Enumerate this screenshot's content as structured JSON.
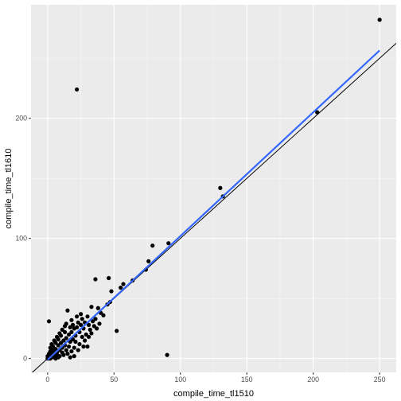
{
  "chart_data": {
    "type": "scatter",
    "xlabel": "compile_time_tl1510",
    "ylabel": "compile_time_tl1610",
    "xlim": [
      -12.5,
      262.5
    ],
    "ylim": [
      -11.5,
      294.5
    ],
    "x_ticks": [
      0,
      50,
      100,
      150,
      200,
      250
    ],
    "y_ticks": [
      0,
      100,
      200
    ],
    "x_tick_labels": [
      "0",
      "50",
      "100",
      "150",
      "200",
      "250"
    ],
    "y_tick_labels": [
      "0",
      "100",
      "200"
    ],
    "grid": true,
    "reference_line": {
      "slope": 1,
      "intercept": 0,
      "color": "#000000"
    },
    "fit_line": {
      "x": [
        0,
        250
      ],
      "y": [
        -1,
        256.5
      ],
      "color": "#3366ff"
    },
    "points": [
      {
        "x": 250,
        "y": 282
      },
      {
        "x": 22,
        "y": 224
      },
      {
        "x": 203,
        "y": 205
      },
      {
        "x": 130,
        "y": 142
      },
      {
        "x": 132,
        "y": 135
      },
      {
        "x": 91,
        "y": 96
      },
      {
        "x": 79,
        "y": 94
      },
      {
        "x": 76,
        "y": 81
      },
      {
        "x": 74,
        "y": 74
      },
      {
        "x": 64,
        "y": 65
      },
      {
        "x": 57,
        "y": 62
      },
      {
        "x": 55,
        "y": 59
      },
      {
        "x": 46,
        "y": 67
      },
      {
        "x": 36,
        "y": 66
      },
      {
        "x": 48,
        "y": 56
      },
      {
        "x": 47,
        "y": 47
      },
      {
        "x": 45,
        "y": 45
      },
      {
        "x": 52,
        "y": 23
      },
      {
        "x": 90,
        "y": 3
      },
      {
        "x": 1,
        "y": 31
      },
      {
        "x": 15,
        "y": 40
      },
      {
        "x": 33,
        "y": 43
      },
      {
        "x": 38,
        "y": 42
      },
      {
        "x": 30,
        "y": 35
      },
      {
        "x": 28,
        "y": 30
      },
      {
        "x": 25,
        "y": 28
      },
      {
        "x": 22,
        "y": 26
      },
      {
        "x": 20,
        "y": 25
      },
      {
        "x": 18,
        "y": 22
      },
      {
        "x": 16,
        "y": 20
      },
      {
        "x": 14,
        "y": 17
      },
      {
        "x": 12,
        "y": 15
      },
      {
        "x": 10,
        "y": 13
      },
      {
        "x": 8,
        "y": 11
      },
      {
        "x": 6,
        "y": 8
      },
      {
        "x": 4,
        "y": 6
      },
      {
        "x": 3,
        "y": 4
      },
      {
        "x": 2,
        "y": 2
      },
      {
        "x": 1,
        "y": 1
      },
      {
        "x": 5,
        "y": 3
      },
      {
        "x": 7,
        "y": 5
      },
      {
        "x": 9,
        "y": 7
      },
      {
        "x": 11,
        "y": 9
      },
      {
        "x": 13,
        "y": 11
      },
      {
        "x": 17,
        "y": 14
      },
      {
        "x": 19,
        "y": 16
      },
      {
        "x": 21,
        "y": 19
      },
      {
        "x": 24,
        "y": 22
      },
      {
        "x": 27,
        "y": 25
      },
      {
        "x": 31,
        "y": 28
      },
      {
        "x": 34,
        "y": 31
      },
      {
        "x": 36,
        "y": 33
      },
      {
        "x": 26,
        "y": 33
      },
      {
        "x": 23,
        "y": 30
      },
      {
        "x": 19,
        "y": 28
      },
      {
        "x": 17,
        "y": 26
      },
      {
        "x": 13,
        "y": 22
      },
      {
        "x": 10,
        "y": 19
      },
      {
        "x": 8,
        "y": 16
      },
      {
        "x": 6,
        "y": 13
      },
      {
        "x": 4,
        "y": 10
      },
      {
        "x": 3,
        "y": 8
      },
      {
        "x": 2,
        "y": 6
      },
      {
        "x": 24,
        "y": 12
      },
      {
        "x": 20,
        "y": 9
      },
      {
        "x": 18,
        "y": 6
      },
      {
        "x": 15,
        "y": 4
      },
      {
        "x": 12,
        "y": 3
      },
      {
        "x": 9,
        "y": 2
      },
      {
        "x": 29,
        "y": 20
      },
      {
        "x": 32,
        "y": 24
      },
      {
        "x": 35,
        "y": 27
      },
      {
        "x": 26,
        "y": 18
      },
      {
        "x": 21,
        "y": 14
      },
      {
        "x": 16,
        "y": 10
      },
      {
        "x": 14,
        "y": 7
      },
      {
        "x": 11,
        "y": 5
      },
      {
        "x": 7,
        "y": 3
      },
      {
        "x": 5,
        "y": 1
      },
      {
        "x": 3,
        "y": 1
      },
      {
        "x": 2,
        "y": 0
      },
      {
        "x": 1,
        "y": 0
      },
      {
        "x": 0,
        "y": 0
      },
      {
        "x": 0,
        "y": 2
      },
      {
        "x": 1,
        "y": 4
      },
      {
        "x": 2,
        "y": 9
      },
      {
        "x": 3,
        "y": 12
      },
      {
        "x": 5,
        "y": 15
      },
      {
        "x": 7,
        "y": 18
      },
      {
        "x": 9,
        "y": 21
      },
      {
        "x": 11,
        "y": 24
      },
      {
        "x": 13,
        "y": 27
      },
      {
        "x": 22,
        "y": 35
      },
      {
        "x": 25,
        "y": 37
      },
      {
        "x": 18,
        "y": 32
      },
      {
        "x": 14,
        "y": 29
      },
      {
        "x": 28,
        "y": 15
      },
      {
        "x": 31,
        "y": 18
      },
      {
        "x": 33,
        "y": 21
      },
      {
        "x": 37,
        "y": 25
      },
      {
        "x": 39,
        "y": 29
      },
      {
        "x": 30,
        "y": 10
      },
      {
        "x": 23,
        "y": 7
      },
      {
        "x": 27,
        "y": 10
      },
      {
        "x": 40,
        "y": 38
      },
      {
        "x": 42,
        "y": 36
      },
      {
        "x": 20,
        "y": 2
      },
      {
        "x": 17,
        "y": 1
      },
      {
        "x": 6,
        "y": 0
      },
      {
        "x": 8,
        "y": 1
      },
      {
        "x": 4,
        "y": 2
      }
    ]
  }
}
